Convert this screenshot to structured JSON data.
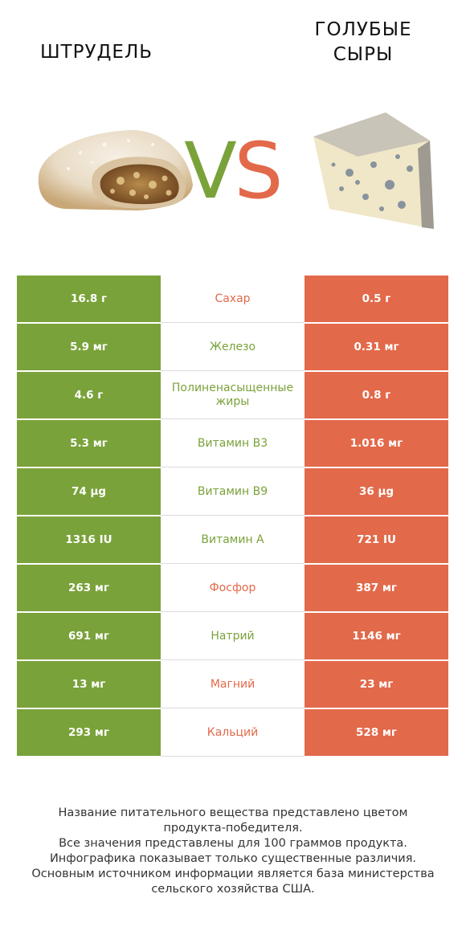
{
  "left_product": {
    "name": "ШТРУДЕЛЬ"
  },
  "right_product": {
    "name_line1": "ГОЛУБЫЕ",
    "name_line2": "СЫРЫ"
  },
  "vs": {
    "text_v": "V",
    "text_s": "S",
    "color_v": "#7aa23a",
    "color_s": "#e2694a"
  },
  "colors": {
    "left": "#7aa23a",
    "right": "#e2694a"
  },
  "rows": [
    {
      "left": "16.8 г",
      "label": "Сахар",
      "right": "0.5 г",
      "winner": "right"
    },
    {
      "left": "5.9 мг",
      "label": "Железо",
      "right": "0.31 мг",
      "winner": "left"
    },
    {
      "left": "4.6 г",
      "label": "Полиненасыщенные жиры",
      "right": "0.8 г",
      "winner": "left"
    },
    {
      "left": "5.3 мг",
      "label": "Витамин B3",
      "right": "1.016 мг",
      "winner": "left"
    },
    {
      "left": "74 µg",
      "label": "Витамин B9",
      "right": "36 µg",
      "winner": "left"
    },
    {
      "left": "1316 IU",
      "label": "Витамин A",
      "right": "721 IU",
      "winner": "left"
    },
    {
      "left": "263 мг",
      "label": "Фосфор",
      "right": "387 мг",
      "winner": "right"
    },
    {
      "left": "691 мг",
      "label": "Натрий",
      "right": "1146 мг",
      "winner": "left"
    },
    {
      "left": "13 мг",
      "label": "Магний",
      "right": "23 мг",
      "winner": "right"
    },
    {
      "left": "293 мг",
      "label": "Кальций",
      "right": "528 мг",
      "winner": "right"
    }
  ],
  "footer": [
    "Название питательного вещества представлено цветом",
    "продукта-победителя.",
    "Все значения представлены для 100 граммов продукта.",
    "Инфографика показывает только существенные различия.",
    "Основным источником информации является база министерства",
    "сельского хозяйства США."
  ]
}
